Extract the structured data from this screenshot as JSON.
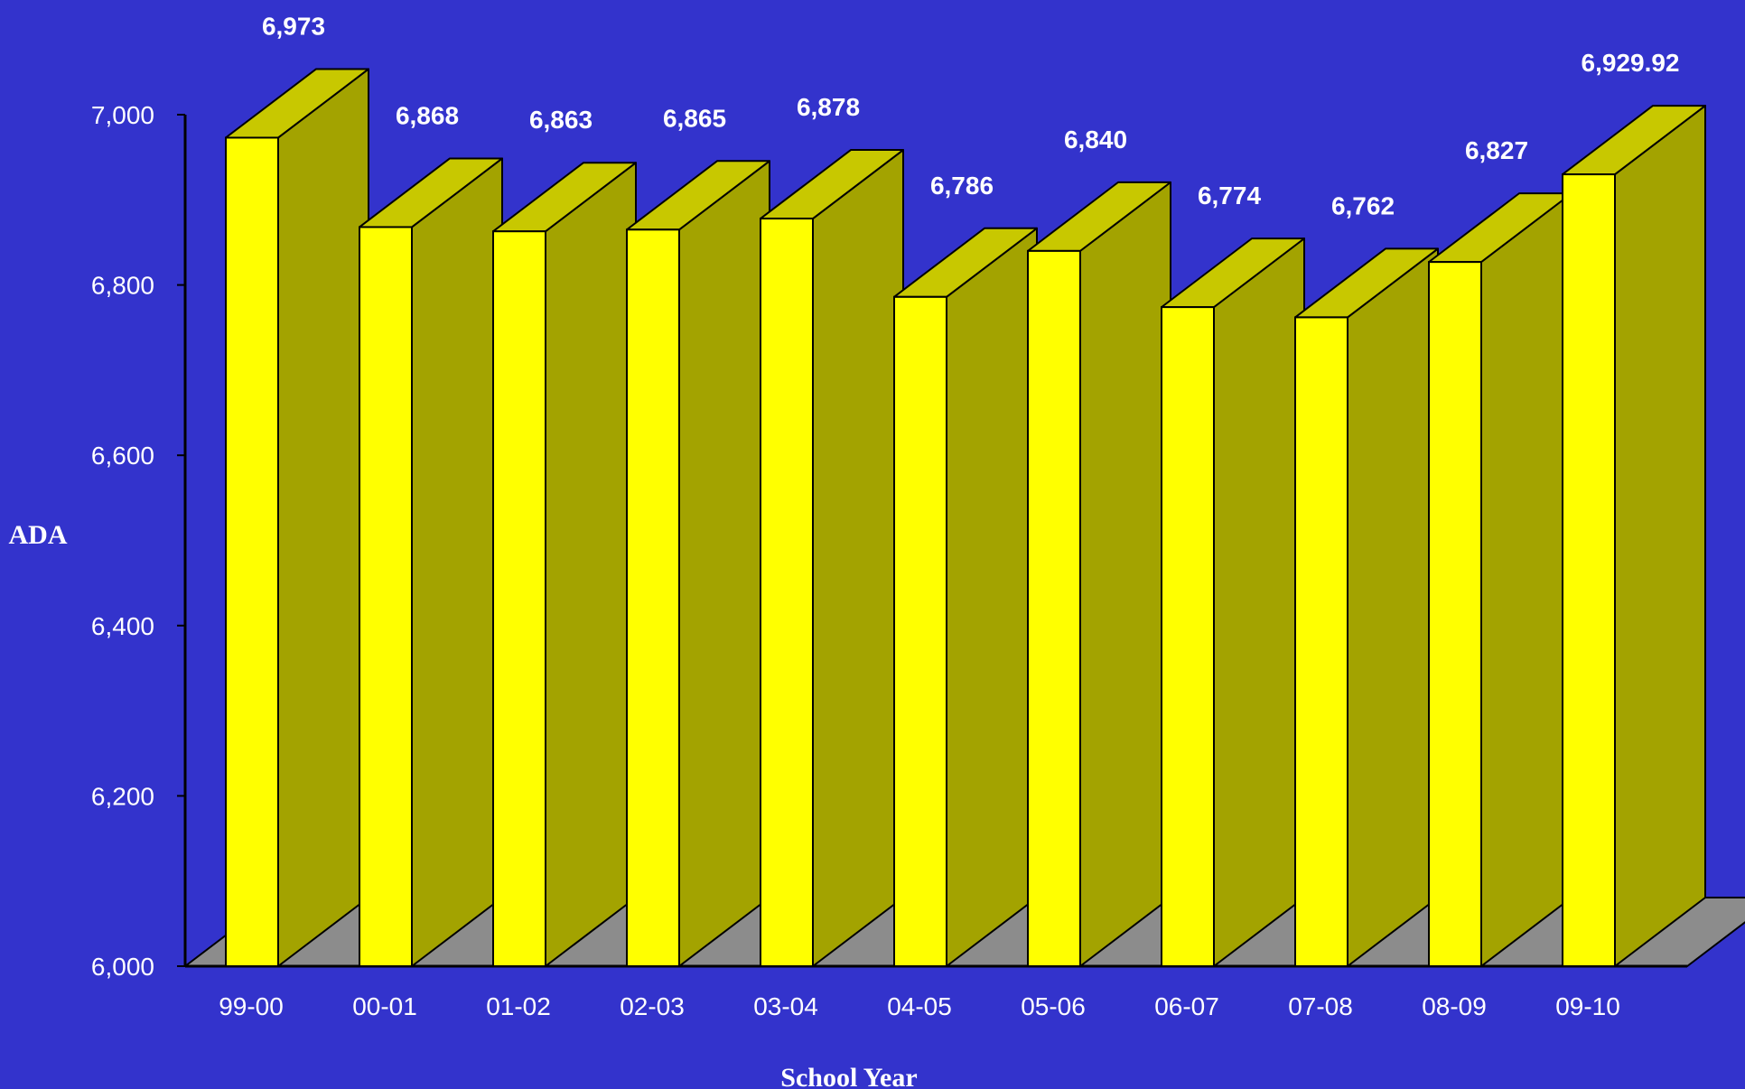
{
  "chart_data": {
    "type": "bar",
    "title": "",
    "xlabel": "School Year",
    "ylabel": "ADA",
    "categories": [
      "99-00",
      "00-01",
      "01-02",
      "02-03",
      "03-04",
      "04-05",
      "05-06",
      "06-07",
      "07-08",
      "08-09",
      "09-10"
    ],
    "values": [
      6973,
      6868,
      6863,
      6865,
      6878,
      6786,
      6840,
      6774,
      6762,
      6827,
      6929.92
    ],
    "value_labels": [
      "6,973",
      "6,868",
      "6,863",
      "6,865",
      "6,878",
      "6,786",
      "6,840",
      "6,774",
      "6,762",
      "6,827",
      "6,929.92"
    ],
    "ylim": [
      6000,
      7000
    ],
    "yticks": [
      6000,
      6200,
      6400,
      6600,
      6800,
      7000
    ],
    "ytick_labels": [
      "6,000",
      "6,200",
      "6,400",
      "6,600",
      "6,800",
      "7,000"
    ],
    "grid": false,
    "legend": "none",
    "style": "3d-column"
  },
  "colors": {
    "background": "#3333CC",
    "bar_front": "#FFFF00",
    "bar_side": "#A3A300",
    "bar_top": "#C8C800",
    "floor": "#8C8C8C",
    "text": "#FFFFFF",
    "outline": "#000000"
  }
}
